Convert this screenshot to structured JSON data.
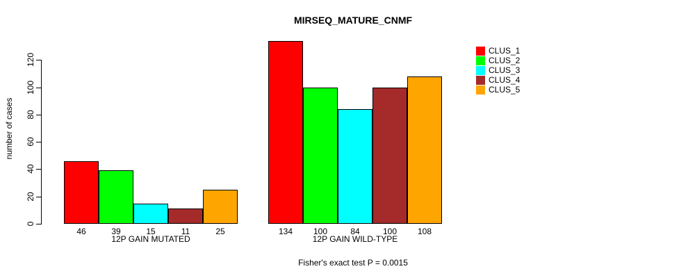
{
  "chart_data": {
    "type": "bar",
    "title": "MIRSEQ_MATURE_CNMF",
    "ylabel": "number of cases",
    "xlabel": "",
    "yticks": [
      0,
      20,
      40,
      60,
      80,
      100,
      120
    ],
    "ylim": [
      0,
      134
    ],
    "grid": false,
    "legend_position": "top-right",
    "categories": [
      "12P GAIN MUTATED",
      "12P GAIN WILD-TYPE"
    ],
    "series_names": [
      "CLUS_1",
      "CLUS_2",
      "CLUS_3",
      "CLUS_4",
      "CLUS_5"
    ],
    "series_colors": [
      "#FF0000",
      "#00FF00",
      "#00FFFF",
      "#A52A2A",
      "#FFA500"
    ],
    "groups": [
      {
        "label": "12P GAIN MUTATED",
        "values": [
          46,
          39,
          15,
          11,
          25
        ]
      },
      {
        "label": "12P GAIN WILD-TYPE",
        "values": [
          134,
          100,
          84,
          100,
          108
        ]
      }
    ],
    "annotation": "Fisher's exact test P = 0.0015"
  }
}
